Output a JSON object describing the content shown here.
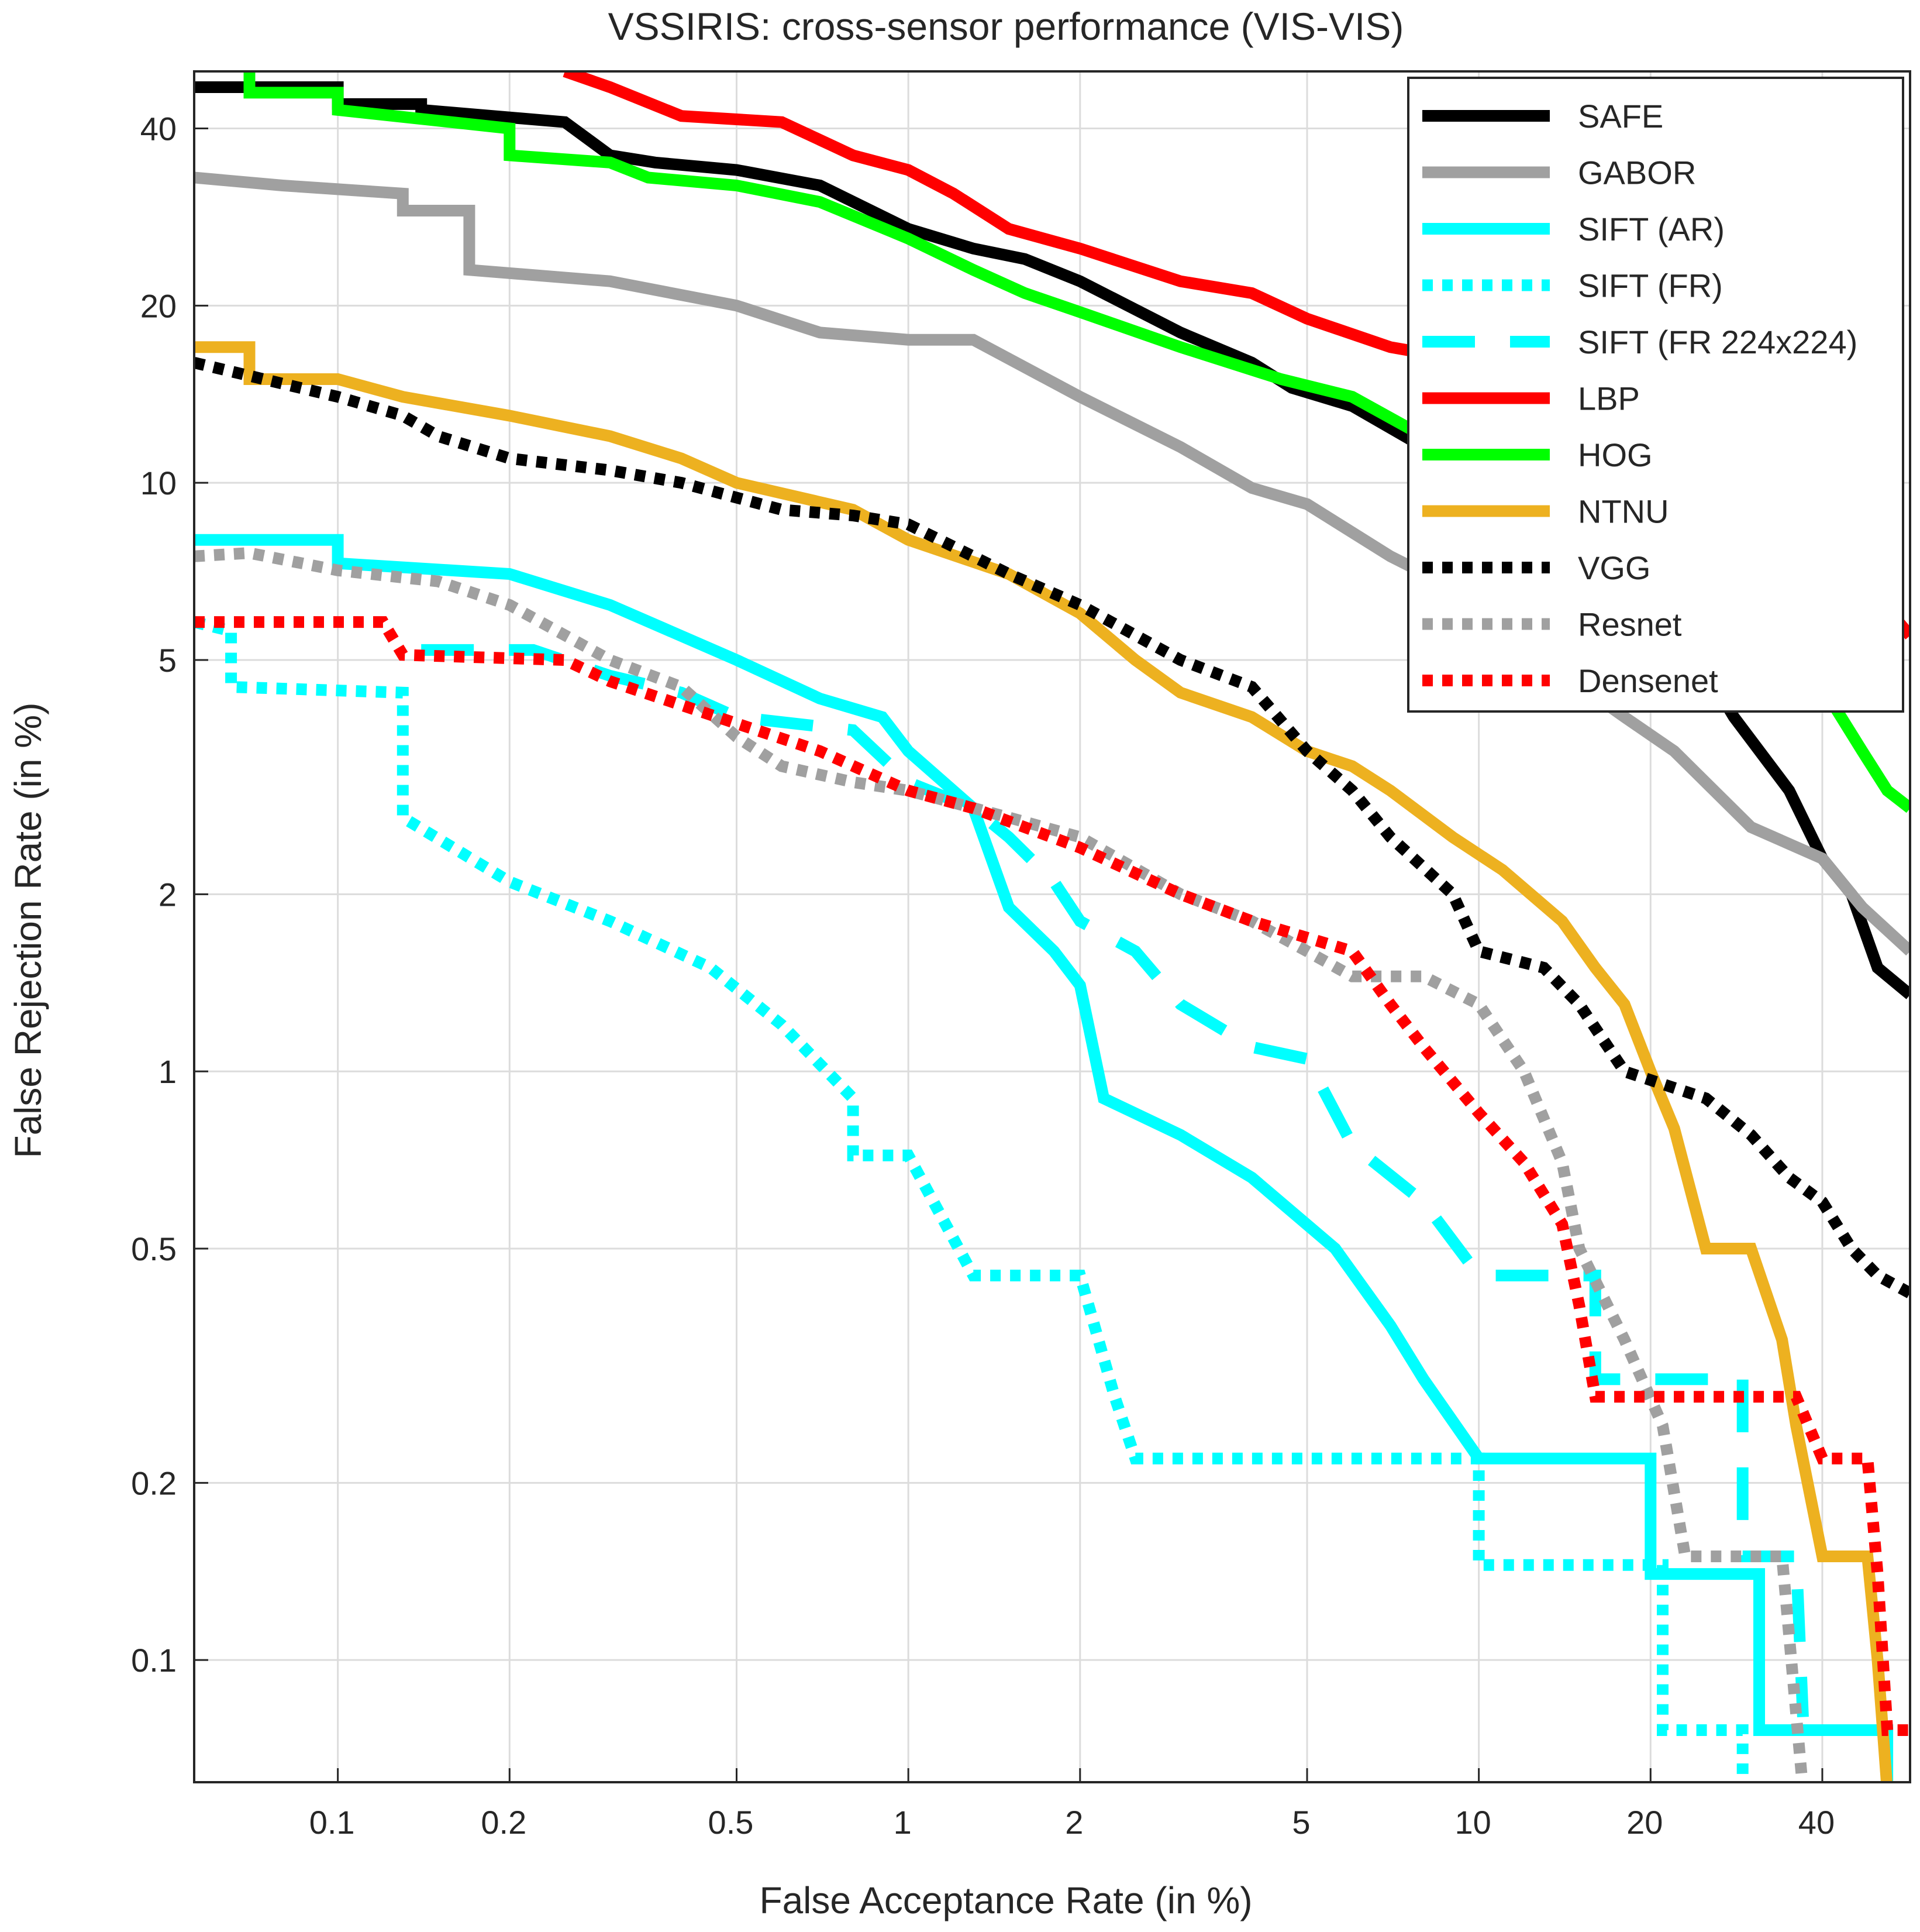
{
  "chart_data": {
    "type": "line",
    "title": "VSSIRIS: cross-sensor performance (VIS-VIS)",
    "xlabel": "False Acceptance Rate (in %)",
    "ylabel": "False Rejection Rate (in %)",
    "xscale": "log",
    "yscale": "log",
    "xlim": [
      0.056,
      57
    ],
    "ylim": [
      0.062,
      50
    ],
    "xticks": [
      0.1,
      0.2,
      0.5,
      1,
      2,
      5,
      10,
      20,
      40
    ],
    "xtick_labels": [
      "0.1",
      "0.2",
      "0.5",
      "1",
      "2",
      "5",
      "10",
      "20",
      "40"
    ],
    "yticks": [
      0.1,
      0.2,
      0.5,
      1,
      2,
      5,
      10,
      20,
      40
    ],
    "ytick_labels": [
      "0.1",
      "0.2",
      "0.5",
      "1",
      "2",
      "5",
      "10",
      "20",
      "40"
    ],
    "grid": true,
    "legend_position": "top-right",
    "series": [
      {
        "name": "SAFE",
        "color": "#000000",
        "style": "solid",
        "points": [
          [
            0.056,
            47
          ],
          [
            0.1,
            47
          ],
          [
            0.1,
            44
          ],
          [
            0.14,
            44
          ],
          [
            0.14,
            43
          ],
          [
            0.25,
            41
          ],
          [
            0.3,
            36
          ],
          [
            0.36,
            35
          ],
          [
            0.5,
            34
          ],
          [
            0.7,
            32
          ],
          [
            1,
            27
          ],
          [
            1.3,
            25
          ],
          [
            1.6,
            24
          ],
          [
            2,
            22
          ],
          [
            3,
            18
          ],
          [
            4,
            16
          ],
          [
            4.7,
            14.5
          ],
          [
            6,
            13.5
          ],
          [
            8,
            11.5
          ],
          [
            10,
            9.5
          ],
          [
            12,
            8
          ],
          [
            15,
            7
          ],
          [
            17,
            6
          ],
          [
            20,
            5.5
          ],
          [
            25,
            4.8
          ],
          [
            28,
            4
          ],
          [
            35,
            3
          ],
          [
            40,
            2.3
          ],
          [
            45,
            2
          ],
          [
            50,
            1.5
          ],
          [
            57,
            1.35
          ]
        ]
      },
      {
        "name": "GABOR",
        "color": "#a0a0a0",
        "style": "solid",
        "points": [
          [
            0.056,
            33
          ],
          [
            0.08,
            32
          ],
          [
            0.13,
            31
          ],
          [
            0.13,
            29
          ],
          [
            0.17,
            29
          ],
          [
            0.17,
            23
          ],
          [
            0.3,
            22
          ],
          [
            0.5,
            20
          ],
          [
            0.7,
            18
          ],
          [
            1,
            17.5
          ],
          [
            1.3,
            17.5
          ],
          [
            2,
            14
          ],
          [
            3,
            11.5
          ],
          [
            4,
            9.8
          ],
          [
            5,
            9.2
          ],
          [
            7,
            7.5
          ],
          [
            10,
            6.3
          ],
          [
            13,
            5
          ],
          [
            18,
            4
          ],
          [
            22,
            3.5
          ],
          [
            30,
            2.6
          ],
          [
            40,
            2.3
          ],
          [
            47,
            1.9
          ],
          [
            57,
            1.6
          ]
        ]
      },
      {
        "name": "SIFT (AR)",
        "color": "#00ffff",
        "style": "solid",
        "points": [
          [
            0.056,
            8
          ],
          [
            0.1,
            8
          ],
          [
            0.1,
            7.3
          ],
          [
            0.2,
            7
          ],
          [
            0.3,
            6.2
          ],
          [
            0.5,
            5
          ],
          [
            0.7,
            4.3
          ],
          [
            0.9,
            4
          ],
          [
            1,
            3.5
          ],
          [
            1.3,
            2.8
          ],
          [
            1.5,
            1.9
          ],
          [
            1.8,
            1.6
          ],
          [
            2,
            1.4
          ],
          [
            2.2,
            0.9
          ],
          [
            3,
            0.78
          ],
          [
            4,
            0.66
          ],
          [
            5.6,
            0.5
          ],
          [
            7,
            0.37
          ],
          [
            8,
            0.3
          ],
          [
            10,
            0.22
          ],
          [
            20,
            0.22
          ],
          [
            20,
            0.14
          ],
          [
            31,
            0.14
          ],
          [
            31,
            0.076
          ],
          [
            38,
            0.076
          ],
          [
            52,
            0.076
          ],
          [
            52,
            0.06
          ]
        ]
      },
      {
        "name": "SIFT (FR)",
        "color": "#00ffff",
        "style": "dotted",
        "points": [
          [
            0.056,
            5.8
          ],
          [
            0.065,
            5.6
          ],
          [
            0.065,
            4.5
          ],
          [
            0.13,
            4.4
          ],
          [
            0.13,
            2.7
          ],
          [
            0.2,
            2.1
          ],
          [
            0.3,
            1.8
          ],
          [
            0.45,
            1.5
          ],
          [
            0.6,
            1.2
          ],
          [
            0.8,
            0.9
          ],
          [
            0.8,
            0.72
          ],
          [
            1,
            0.72
          ],
          [
            1.3,
            0.45
          ],
          [
            2,
            0.45
          ],
          [
            2.3,
            0.28
          ],
          [
            2.5,
            0.22
          ],
          [
            10,
            0.22
          ],
          [
            10,
            0.145
          ],
          [
            21,
            0.145
          ],
          [
            21,
            0.076
          ],
          [
            29,
            0.076
          ],
          [
            29,
            0.06
          ]
        ]
      },
      {
        "name": "SIFT (FR 224x224)",
        "color": "#00ffff",
        "style": "dashed",
        "points": [
          [
            0.14,
            5.2
          ],
          [
            0.22,
            5.2
          ],
          [
            0.3,
            4.7
          ],
          [
            0.4,
            4.4
          ],
          [
            0.5,
            4
          ],
          [
            0.8,
            3.8
          ],
          [
            1,
            3.1
          ],
          [
            1.3,
            2.8
          ],
          [
            1.5,
            2.5
          ],
          [
            1.8,
            2.1
          ],
          [
            2,
            1.8
          ],
          [
            2.5,
            1.6
          ],
          [
            3,
            1.3
          ],
          [
            4,
            1.1
          ],
          [
            5,
            1.05
          ],
          [
            6,
            0.75
          ],
          [
            8,
            0.6
          ],
          [
            10,
            0.45
          ],
          [
            16,
            0.45
          ],
          [
            16,
            0.3
          ],
          [
            20,
            0.3
          ],
          [
            29,
            0.3
          ],
          [
            29,
            0.15
          ],
          [
            36,
            0.15
          ],
          [
            37,
            0.08
          ]
        ]
      },
      {
        "name": "LBP",
        "color": "#ff0000",
        "style": "solid",
        "points": [
          [
            0.25,
            50
          ],
          [
            0.3,
            47
          ],
          [
            0.4,
            42
          ],
          [
            0.6,
            41
          ],
          [
            0.8,
            36
          ],
          [
            1,
            34
          ],
          [
            1.2,
            31
          ],
          [
            1.5,
            27
          ],
          [
            2,
            25
          ],
          [
            3,
            22
          ],
          [
            4,
            21
          ],
          [
            5,
            19
          ],
          [
            7,
            17
          ],
          [
            10,
            16
          ],
          [
            14,
            13
          ],
          [
            20,
            11
          ],
          [
            26,
            9.8
          ],
          [
            30,
            8.5
          ],
          [
            40,
            7.3
          ],
          [
            50,
            6.4
          ],
          [
            57,
            5.5
          ]
        ]
      },
      {
        "name": "HOG",
        "color": "#00ff00",
        "style": "solid",
        "points": [
          [
            0.07,
            50
          ],
          [
            0.07,
            46
          ],
          [
            0.1,
            46
          ],
          [
            0.1,
            43
          ],
          [
            0.2,
            40
          ],
          [
            0.2,
            36
          ],
          [
            0.3,
            35
          ],
          [
            0.35,
            33
          ],
          [
            0.5,
            32
          ],
          [
            0.7,
            30
          ],
          [
            1,
            26
          ],
          [
            1.3,
            23
          ],
          [
            1.6,
            21
          ],
          [
            2,
            19.5
          ],
          [
            3,
            17
          ],
          [
            4.5,
            15
          ],
          [
            6,
            14
          ],
          [
            8,
            12
          ],
          [
            10,
            11.5
          ],
          [
            12,
            9.5
          ],
          [
            15,
            8
          ],
          [
            20,
            7
          ],
          [
            25,
            6.3
          ],
          [
            30,
            5.5
          ],
          [
            40,
            4.5
          ],
          [
            47,
            3.5
          ],
          [
            52,
            3
          ],
          [
            57,
            2.8
          ]
        ]
      },
      {
        "name": "NTNU",
        "color": "#edb120",
        "style": "solid",
        "points": [
          [
            0.056,
            17
          ],
          [
            0.07,
            17
          ],
          [
            0.07,
            15
          ],
          [
            0.1,
            15
          ],
          [
            0.13,
            14
          ],
          [
            0.2,
            13
          ],
          [
            0.3,
            12
          ],
          [
            0.4,
            11
          ],
          [
            0.5,
            10
          ],
          [
            0.8,
            9
          ],
          [
            1,
            8
          ],
          [
            1.5,
            7
          ],
          [
            2,
            6
          ],
          [
            2.5,
            5
          ],
          [
            3,
            4.4
          ],
          [
            4,
            4
          ],
          [
            5,
            3.5
          ],
          [
            6,
            3.3
          ],
          [
            7,
            3
          ],
          [
            9,
            2.5
          ],
          [
            11,
            2.2
          ],
          [
            14,
            1.8
          ],
          [
            16,
            1.5
          ],
          [
            18,
            1.3
          ],
          [
            20,
            1
          ],
          [
            22,
            0.8
          ],
          [
            25,
            0.5
          ],
          [
            30,
            0.5
          ],
          [
            34,
            0.35
          ],
          [
            36,
            0.25
          ],
          [
            40,
            0.15
          ],
          [
            48,
            0.15
          ],
          [
            50,
            0.1
          ],
          [
            52,
            0.06
          ]
        ]
      },
      {
        "name": "VGG",
        "color": "#000000",
        "style": "dotted",
        "points": [
          [
            0.056,
            16
          ],
          [
            0.1,
            14
          ],
          [
            0.13,
            13
          ],
          [
            0.15,
            12
          ],
          [
            0.2,
            11
          ],
          [
            0.3,
            10.5
          ],
          [
            0.4,
            10
          ],
          [
            0.6,
            9
          ],
          [
            0.8,
            8.8
          ],
          [
            1,
            8.5
          ],
          [
            1.5,
            7
          ],
          [
            2,
            6.2
          ],
          [
            3,
            5
          ],
          [
            4,
            4.5
          ],
          [
            5,
            3.5
          ],
          [
            6,
            3
          ],
          [
            7,
            2.5
          ],
          [
            9,
            2
          ],
          [
            10,
            1.6
          ],
          [
            13,
            1.5
          ],
          [
            15,
            1.3
          ],
          [
            18,
            1
          ],
          [
            25,
            0.9
          ],
          [
            30,
            0.78
          ],
          [
            35,
            0.66
          ],
          [
            40,
            0.6
          ],
          [
            45,
            0.5
          ],
          [
            50,
            0.45
          ],
          [
            57,
            0.42
          ]
        ]
      },
      {
        "name": "Resnet",
        "color": "#a0a0a0",
        "style": "dotted",
        "points": [
          [
            0.056,
            7.5
          ],
          [
            0.07,
            7.6
          ],
          [
            0.1,
            7.1
          ],
          [
            0.15,
            6.8
          ],
          [
            0.2,
            6.2
          ],
          [
            0.3,
            5
          ],
          [
            0.4,
            4.5
          ],
          [
            0.5,
            3.7
          ],
          [
            0.6,
            3.3
          ],
          [
            0.8,
            3.1
          ],
          [
            1,
            3
          ],
          [
            1.5,
            2.7
          ],
          [
            2,
            2.5
          ],
          [
            3,
            2
          ],
          [
            4,
            1.8
          ],
          [
            5,
            1.6
          ],
          [
            6,
            1.45
          ],
          [
            8,
            1.45
          ],
          [
            10,
            1.3
          ],
          [
            12,
            1
          ],
          [
            14,
            0.7
          ],
          [
            15,
            0.5
          ],
          [
            18,
            0.35
          ],
          [
            21,
            0.25
          ],
          [
            23,
            0.15
          ],
          [
            30,
            0.15
          ],
          [
            34,
            0.15
          ],
          [
            37,
            0.06
          ]
        ]
      },
      {
        "name": "Densenet",
        "color": "#ff0000",
        "style": "dotted",
        "points": [
          [
            0.056,
            5.8
          ],
          [
            0.12,
            5.8
          ],
          [
            0.13,
            5.1
          ],
          [
            0.25,
            5
          ],
          [
            0.3,
            4.6
          ],
          [
            0.5,
            3.9
          ],
          [
            0.7,
            3.5
          ],
          [
            1,
            3
          ],
          [
            1.3,
            2.8
          ],
          [
            2,
            2.4
          ],
          [
            3,
            2
          ],
          [
            4,
            1.8
          ],
          [
            6,
            1.6
          ],
          [
            7,
            1.3
          ],
          [
            8,
            1.1
          ],
          [
            10,
            0.85
          ],
          [
            12,
            0.7
          ],
          [
            14,
            0.55
          ],
          [
            15,
            0.4
          ],
          [
            16,
            0.28
          ],
          [
            20,
            0.28
          ],
          [
            36,
            0.28
          ],
          [
            40,
            0.22
          ],
          [
            48,
            0.22
          ],
          [
            50,
            0.14
          ],
          [
            52,
            0.076
          ],
          [
            57,
            0.076
          ]
        ]
      }
    ]
  }
}
